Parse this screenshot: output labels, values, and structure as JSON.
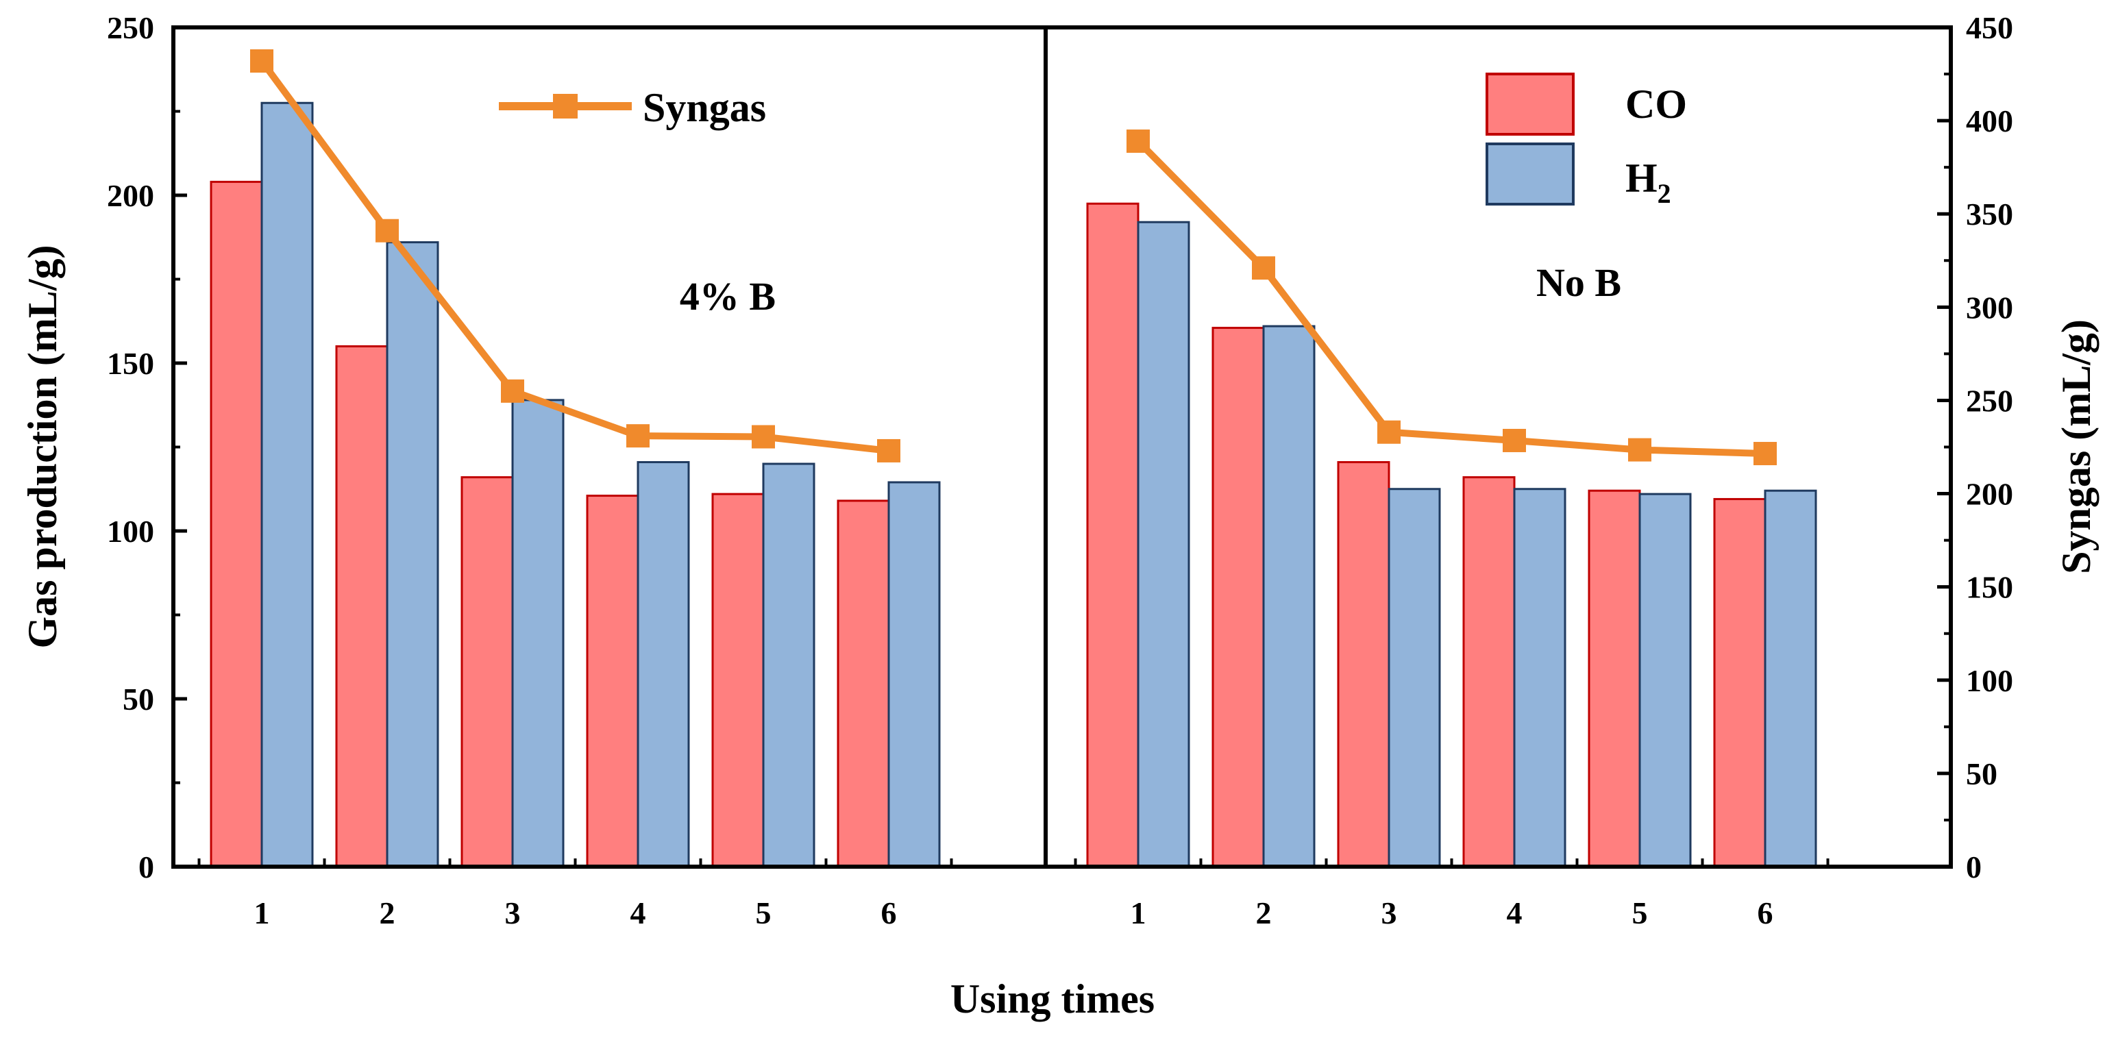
{
  "chart_data": {
    "type": "bar",
    "xlabel": "Using times",
    "ylabel": "Gas production (mL/g)",
    "y2label": "Syngas (mL/g)",
    "ylim": [
      0,
      250
    ],
    "y2lim": [
      0,
      450
    ],
    "yticks": [
      0,
      50,
      100,
      150,
      200,
      250
    ],
    "y2ticks": [
      0,
      50,
      100,
      150,
      200,
      250,
      300,
      350,
      400,
      450
    ],
    "categories": [
      "1",
      "2",
      "3",
      "4",
      "5",
      "6"
    ],
    "colors": {
      "CO": "#ff7f7f",
      "CO_edge": "#c00000",
      "H2": "#92b4da",
      "H2_edge": "#1f3a5f",
      "Syngas": "#f08a2c"
    },
    "legend": {
      "syngas": "Syngas",
      "co": "CO",
      "h2_main": "H",
      "h2_sub": "2"
    },
    "panels": [
      {
        "label": "4% B",
        "series": [
          {
            "name": "CO",
            "values": [
              204,
              155,
              116,
              110.5,
              111,
              109
            ]
          },
          {
            "name": "H2",
            "values": [
              227.5,
              186,
              139,
              120.5,
              120,
              114.5
            ]
          }
        ],
        "syngas": [
          432,
          341,
          255,
          231,
          230.5,
          223
        ]
      },
      {
        "label": "No B",
        "series": [
          {
            "name": "CO",
            "values": [
              197.5,
              160.5,
              120.5,
              116,
              112,
              109.5
            ]
          },
          {
            "name": "H2",
            "values": [
              192,
              161,
              112.5,
              112.5,
              111,
              112
            ]
          }
        ],
        "syngas": [
          389,
          321,
          233,
          228.5,
          223.5,
          221.5
        ]
      }
    ]
  }
}
